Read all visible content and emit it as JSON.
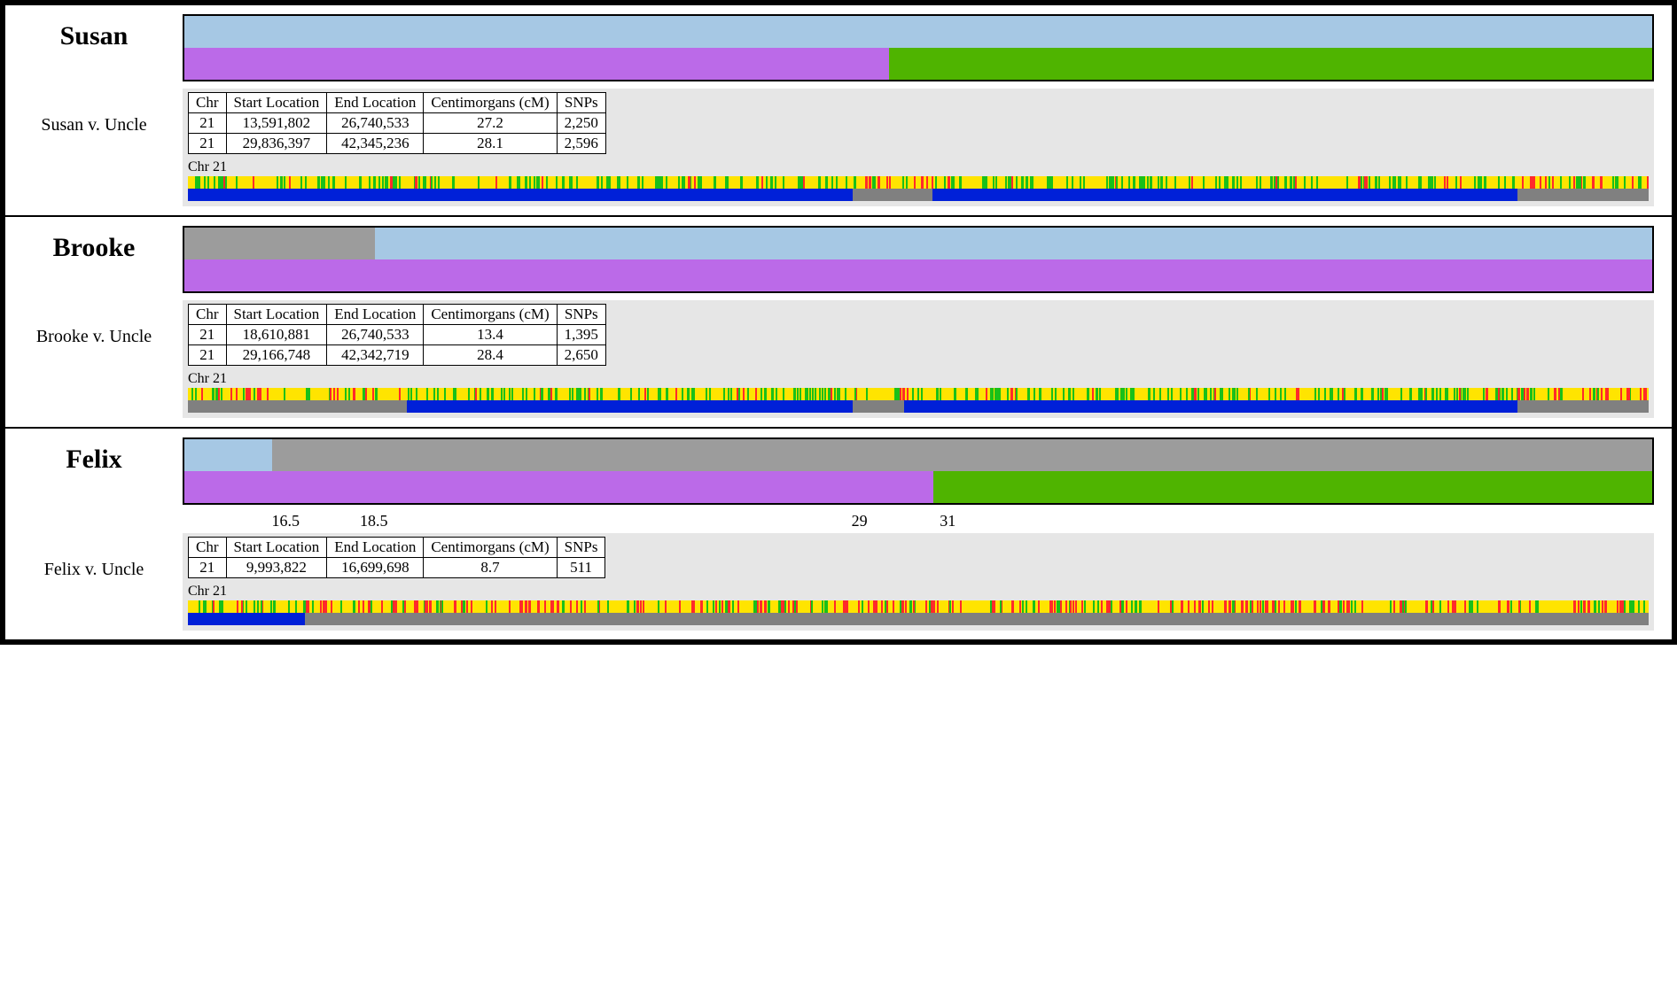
{
  "colors": {
    "lightblue": "#a6c8e4",
    "purple": "#bb6ae8",
    "green": "#4fb400",
    "grey": "#9c9c9c",
    "yellow": "#ffe400",
    "snp_green": "#19c019",
    "snp_red": "#ff2a2a",
    "blue": "#0020d8",
    "track_grey": "#808080",
    "panel_grey": "#e6e6e6"
  },
  "table_headers": [
    "Chr",
    "Start Location",
    "End Location",
    "Centimorgans (cM)",
    "SNPs"
  ],
  "panels": [
    {
      "name": "Susan",
      "comparison": "Susan v. Uncle",
      "haplo": {
        "top": [
          {
            "color": "lightblue",
            "pct": 100
          }
        ],
        "bottom": [
          {
            "color": "purple",
            "pct": 48
          },
          {
            "color": "green",
            "pct": 52
          }
        ]
      },
      "rows": [
        [
          "21",
          "13,591,802",
          "26,740,533",
          "27.2",
          "2,250"
        ],
        [
          "21",
          "29,836,397",
          "42,345,236",
          "28.1",
          "2,596"
        ]
      ],
      "chr_label": "Chr 21",
      "match_segments": [
        {
          "start": 0,
          "end": 45.5,
          "color": "blue"
        },
        {
          "start": 51,
          "end": 91,
          "color": "blue"
        }
      ],
      "snp_seed": 11
    },
    {
      "name": "Brooke",
      "comparison": "Brooke v. Uncle",
      "haplo": {
        "top": [
          {
            "color": "grey",
            "pct": 13
          },
          {
            "color": "lightblue",
            "pct": 87
          }
        ],
        "bottom": [
          {
            "color": "purple",
            "pct": 100
          }
        ]
      },
      "rows": [
        [
          "21",
          "18,610,881",
          "26,740,533",
          "13.4",
          "1,395"
        ],
        [
          "21",
          "29,166,748",
          "42,342,719",
          "28.4",
          "2,650"
        ]
      ],
      "chr_label": "Chr 21",
      "match_segments": [
        {
          "start": 15,
          "end": 45.5,
          "color": "blue"
        },
        {
          "start": 49,
          "end": 91,
          "color": "blue"
        }
      ],
      "snp_seed": 22
    },
    {
      "name": "Felix",
      "comparison": "Felix v. Uncle",
      "haplo": {
        "top": [
          {
            "color": "lightblue",
            "pct": 6
          },
          {
            "color": "grey",
            "pct": 94
          }
        ],
        "bottom": [
          {
            "color": "purple",
            "pct": 51
          },
          {
            "color": "green",
            "pct": 49
          }
        ]
      },
      "axis": [
        {
          "pos": 7,
          "label": "16.5"
        },
        {
          "pos": 13,
          "label": "18.5"
        },
        {
          "pos": 46,
          "label": "29"
        },
        {
          "pos": 52,
          "label": "31"
        }
      ],
      "rows": [
        [
          "21",
          "9,993,822",
          "16,699,698",
          "8.7",
          "511"
        ]
      ],
      "chr_label": "Chr 21",
      "match_segments": [
        {
          "start": 0,
          "end": 8,
          "color": "blue"
        }
      ],
      "snp_seed": 33
    }
  ]
}
